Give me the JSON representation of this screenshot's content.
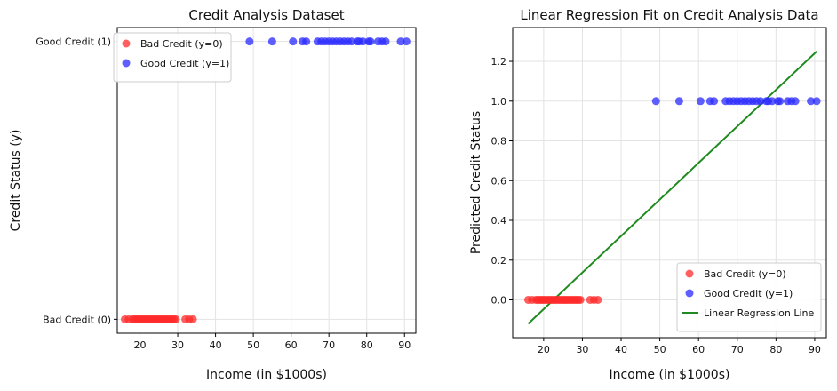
{
  "chart_data": [
    {
      "type": "scatter",
      "title": "Credit Analysis Dataset",
      "xlabel": "Income (in $1000s)",
      "ylabel": "Credit Status (y)",
      "xlim": [
        14,
        93
      ],
      "ylim": [
        -0.05,
        1.05
      ],
      "xticks": [
        20,
        30,
        40,
        50,
        60,
        70,
        80,
        90
      ],
      "yticks": [
        0,
        1
      ],
      "ytick_labels": [
        "Bad Credit (0)",
        "Good Credit (1)"
      ],
      "grid": true,
      "legend_position": "top-left",
      "series": [
        {
          "name": "Bad Credit (y=0)",
          "color": "#ff2a2a",
          "x": [
            16,
            17,
            18,
            18.5,
            19,
            19.5,
            20,
            20.5,
            21,
            21.5,
            22,
            22.5,
            23,
            23.5,
            24,
            24.5,
            25,
            25.5,
            26,
            26.5,
            27,
            27.5,
            28,
            28.5,
            29,
            29.5,
            32,
            33,
            34
          ],
          "y": [
            0,
            0,
            0,
            0,
            0,
            0,
            0,
            0,
            0,
            0,
            0,
            0,
            0,
            0,
            0,
            0,
            0,
            0,
            0,
            0,
            0,
            0,
            0,
            0,
            0,
            0,
            0,
            0,
            0
          ]
        },
        {
          "name": "Good Credit (y=1)",
          "color": "#2a2aff",
          "x": [
            49,
            55,
            60.5,
            63,
            64,
            67,
            68,
            69,
            70,
            71,
            72,
            73,
            74,
            75,
            76,
            77.5,
            78,
            79,
            80.5,
            81,
            83,
            84,
            85,
            89,
            90.5
          ],
          "y": [
            1,
            1,
            1,
            1,
            1,
            1,
            1,
            1,
            1,
            1,
            1,
            1,
            1,
            1,
            1,
            1,
            1,
            1,
            1,
            1,
            1,
            1,
            1,
            1,
            1
          ]
        }
      ]
    },
    {
      "type": "scatter",
      "title": "Linear Regression Fit on Credit Analysis Data",
      "xlabel": "Income (in $1000s)",
      "ylabel": "Predicted Credit Status",
      "xlim": [
        12,
        93
      ],
      "ylim": [
        -0.19,
        1.37
      ],
      "xticks": [
        20,
        30,
        40,
        50,
        60,
        70,
        80,
        90
      ],
      "yticks": [
        0.0,
        0.2,
        0.4,
        0.6,
        0.8,
        1.0,
        1.2
      ],
      "ytick_labels": [
        "0.0",
        "0.2",
        "0.4",
        "0.6",
        "0.8",
        "1.0",
        "1.2"
      ],
      "grid": true,
      "legend_position": "bottom-right",
      "series": [
        {
          "name": "Bad Credit (y=0)",
          "color": "#ff2a2a",
          "x": [
            16,
            17,
            18,
            18.5,
            19,
            19.5,
            20,
            20.5,
            21,
            21.5,
            22,
            22.5,
            23,
            23.5,
            24,
            24.5,
            25,
            25.5,
            26,
            26.5,
            27,
            27.5,
            28,
            28.5,
            29,
            29.5,
            32,
            33,
            34
          ],
          "y": [
            0,
            0,
            0,
            0,
            0,
            0,
            0,
            0,
            0,
            0,
            0,
            0,
            0,
            0,
            0,
            0,
            0,
            0,
            0,
            0,
            0,
            0,
            0,
            0,
            0,
            0,
            0,
            0,
            0
          ]
        },
        {
          "name": "Good Credit (y=1)",
          "color": "#2a2aff",
          "x": [
            49,
            55,
            60.5,
            63,
            64,
            67,
            68,
            69,
            70,
            71,
            72,
            73,
            74,
            75,
            76,
            77.5,
            78,
            79,
            80.5,
            81,
            83,
            84,
            85,
            89,
            90.5
          ],
          "y": [
            1,
            1,
            1,
            1,
            1,
            1,
            1,
            1,
            1,
            1,
            1,
            1,
            1,
            1,
            1,
            1,
            1,
            1,
            1,
            1,
            1,
            1,
            1,
            1,
            1
          ]
        }
      ],
      "line": {
        "name": "Linear Regression Line",
        "color": "#1f8a1f",
        "x": [
          16,
          90.5
        ],
        "y": [
          -0.12,
          1.25
        ]
      }
    }
  ]
}
